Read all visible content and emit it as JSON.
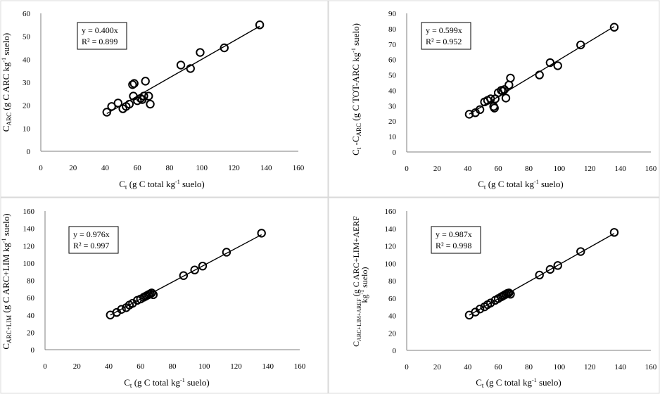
{
  "chart_data": [
    {
      "type": "scatter",
      "title": "",
      "xlabel": "C_t (g C total kg-1 suelo)",
      "ylabel": "C_ARC (g C ARC kg-1 suelo)",
      "xlim": [
        0,
        160
      ],
      "ylim": [
        0,
        60
      ],
      "xticks": [
        "0",
        "20",
        "40",
        "60",
        "80",
        "100",
        "120",
        "140",
        "160"
      ],
      "yticks": [
        "0",
        "10",
        "20",
        "30",
        "40",
        "50",
        "60"
      ],
      "grid": false,
      "equation": "y = 0.400x",
      "r2": "R² = 0.899",
      "trend_slope": 0.4,
      "trend_x": [
        41,
        136
      ],
      "x": [
        41,
        44,
        48,
        51,
        53,
        55,
        57,
        57.5,
        58,
        60,
        62,
        63,
        64,
        65,
        67,
        68,
        87,
        93,
        99,
        114,
        136
      ],
      "y": [
        17,
        19.5,
        21,
        18.5,
        19.5,
        20.5,
        29,
        24,
        29.5,
        22,
        23,
        22.5,
        24,
        30.5,
        24,
        20.5,
        37.5,
        36,
        43,
        45,
        55
      ]
    },
    {
      "type": "scatter",
      "title": "",
      "xlabel": "C_t (g C total kg-1 suelo)",
      "ylabel": "C_t -C_ARC (g C TOT-ARC kg-1 suelo)",
      "xlim": [
        0,
        160
      ],
      "ylim": [
        0,
        90
      ],
      "xticks": [
        "0",
        "20",
        "40",
        "60",
        "80",
        "100",
        "120",
        "140",
        "160"
      ],
      "yticks": [
        "0",
        "10",
        "20",
        "30",
        "40",
        "50",
        "60",
        "70",
        "80",
        "90"
      ],
      "grid": false,
      "equation": "y = 0.599x",
      "r2": "R² = 0.952",
      "trend_slope": 0.599,
      "trend_x": [
        41,
        136
      ],
      "x": [
        41,
        45,
        48,
        51,
        53,
        55,
        57,
        57.5,
        58,
        60,
        62,
        63,
        64,
        65,
        67,
        68,
        87,
        94,
        99,
        114,
        136
      ],
      "y": [
        24.5,
        25.5,
        27.5,
        32.5,
        33.5,
        34.5,
        29.5,
        28.5,
        34.5,
        38.5,
        40,
        39.5,
        40.5,
        35,
        43.5,
        48,
        50,
        58,
        56,
        69.5,
        81
      ]
    },
    {
      "type": "scatter",
      "title": "",
      "xlabel": "C_t (g C total kg-1 suelo)",
      "ylabel": "C_ARC+LIM (g C ARC+LIM kg-1 suelo)",
      "xlim": [
        0,
        160
      ],
      "ylim": [
        0,
        160
      ],
      "xticks": [
        "0",
        "20",
        "40",
        "60",
        "80",
        "100",
        "120",
        "140",
        "160"
      ],
      "yticks": [
        "0",
        "20",
        "40",
        "60",
        "80",
        "100",
        "120",
        "140",
        "160"
      ],
      "grid": false,
      "equation": "y = 0.976x",
      "r2": "R² = 0.997",
      "trend_slope": 0.976,
      "trend_x": [
        41,
        136
      ],
      "x": [
        41,
        45,
        48,
        51,
        53,
        55,
        58,
        60,
        62,
        63,
        64,
        65,
        66,
        67,
        68,
        87,
        94,
        99,
        114,
        136
      ],
      "y": [
        40,
        43,
        46.5,
        48.5,
        51.5,
        53.5,
        57,
        58.5,
        60.5,
        61.5,
        62.5,
        63.5,
        64.5,
        65.5,
        63.5,
        85.5,
        92,
        96.5,
        112.5,
        134.5
      ]
    },
    {
      "type": "scatter",
      "title": "",
      "xlabel": "C_t (g C total kg-1 suelo)",
      "ylabel": "C_ARC+LIM+AREF (g C ARC+LIM+AERF kg-1 suelo)",
      "xlim": [
        0,
        160
      ],
      "ylim": [
        0,
        160
      ],
      "xticks": [
        "0",
        "20",
        "40",
        "60",
        "80",
        "100",
        "120",
        "140",
        "160"
      ],
      "yticks": [
        "0",
        "20",
        "40",
        "60",
        "80",
        "100",
        "120",
        "140",
        "160"
      ],
      "grid": false,
      "equation": "y = 0.987x",
      "r2": "R² = 0.998",
      "trend_slope": 0.987,
      "trend_x": [
        41,
        136
      ],
      "x": [
        41,
        45,
        48,
        51,
        53,
        55,
        58,
        60,
        62,
        63,
        64,
        65,
        66,
        67,
        68,
        87,
        94,
        99,
        114,
        136
      ],
      "y": [
        40.5,
        44,
        47.5,
        50,
        52.5,
        54.5,
        57.5,
        59.5,
        61.5,
        62.5,
        63.5,
        64.5,
        65.5,
        66,
        64.5,
        86.5,
        93,
        97.5,
        113.5,
        135.5
      ]
    }
  ]
}
